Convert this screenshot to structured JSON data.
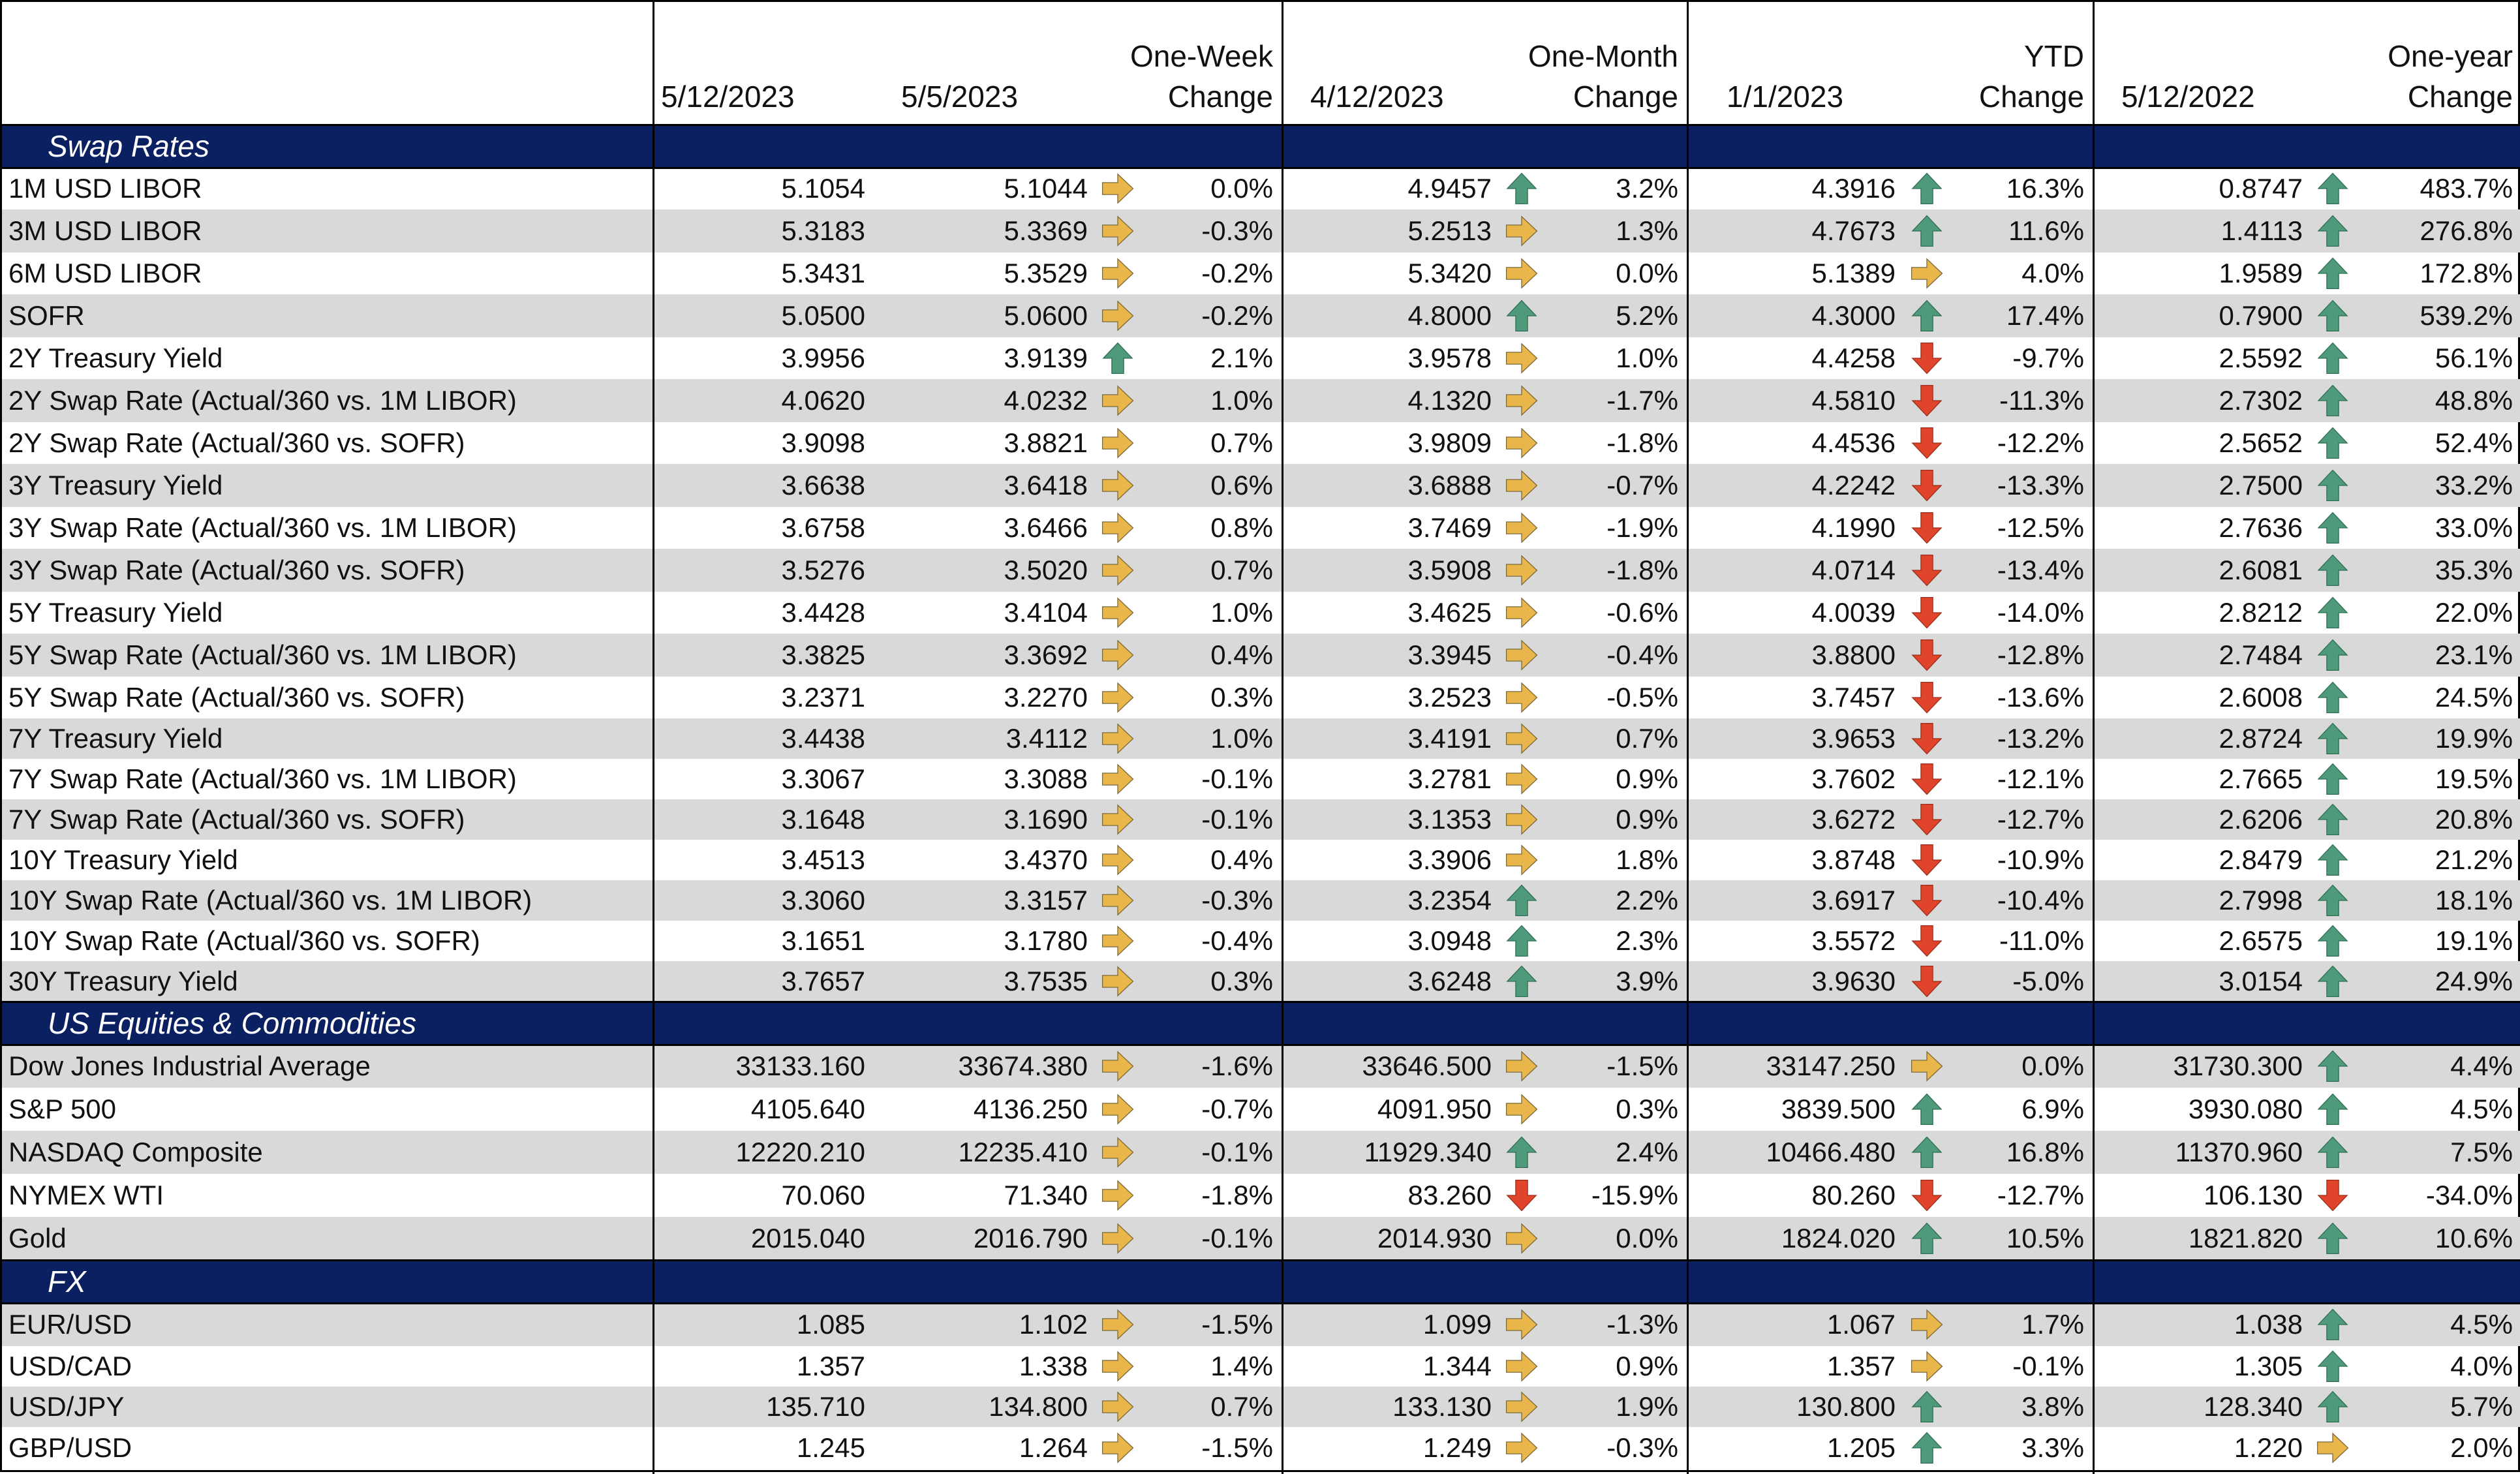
{
  "headers": [
    {
      "line1": "",
      "line2": "5/12/2023"
    },
    {
      "line1": "",
      "line2": "5/5/2023"
    },
    {
      "line1": "One-Week",
      "line2": "Change"
    },
    {
      "line1": "",
      "line2": "4/12/2023"
    },
    {
      "line1": "One-Month",
      "line2": "Change"
    },
    {
      "line1": "",
      "line2": "1/1/2023"
    },
    {
      "line1": "YTD",
      "line2": "Change"
    },
    {
      "line1": "",
      "line2": "5/12/2022"
    },
    {
      "line1": "One-year",
      "line2": "Change"
    }
  ],
  "colors": {
    "section_bg": "#0b2060",
    "shade": "#d9d9d9",
    "arrow_up": "#4e9a7a",
    "arrow_down": "#e0442a",
    "arrow_flat": "#e9b64c"
  },
  "sections": [
    {
      "title": "Swap Rates",
      "rows": [
        {
          "name": "1M USD LIBOR",
          "current": "5.1054",
          "week": "5.1044",
          "week_dir": "flat",
          "week_chg": "0.0%",
          "month": "4.9457",
          "month_dir": "up",
          "month_chg": "3.2%",
          "ytd": "4.3916",
          "ytd_dir": "up",
          "ytd_chg": "16.3%",
          "year": "0.8747",
          "year_dir": "up",
          "year_chg": "483.7%"
        },
        {
          "name": "3M USD LIBOR",
          "current": "5.3183",
          "week": "5.3369",
          "week_dir": "flat",
          "week_chg": "-0.3%",
          "month": "5.2513",
          "month_dir": "flat",
          "month_chg": "1.3%",
          "ytd": "4.7673",
          "ytd_dir": "up",
          "ytd_chg": "11.6%",
          "year": "1.4113",
          "year_dir": "up",
          "year_chg": "276.8%"
        },
        {
          "name": "6M USD LIBOR",
          "current": "5.3431",
          "week": "5.3529",
          "week_dir": "flat",
          "week_chg": "-0.2%",
          "month": "5.3420",
          "month_dir": "flat",
          "month_chg": "0.0%",
          "ytd": "5.1389",
          "ytd_dir": "flat",
          "ytd_chg": "4.0%",
          "year": "1.9589",
          "year_dir": "up",
          "year_chg": "172.8%"
        },
        {
          "name": "SOFR",
          "current": "5.0500",
          "week": "5.0600",
          "week_dir": "flat",
          "week_chg": "-0.2%",
          "month": "4.8000",
          "month_dir": "up",
          "month_chg": "5.2%",
          "ytd": "4.3000",
          "ytd_dir": "up",
          "ytd_chg": "17.4%",
          "year": "0.7900",
          "year_dir": "up",
          "year_chg": "539.2%"
        },
        {
          "name": "2Y Treasury Yield",
          "current": "3.9956",
          "week": "3.9139",
          "week_dir": "up",
          "week_chg": "2.1%",
          "month": "3.9578",
          "month_dir": "flat",
          "month_chg": "1.0%",
          "ytd": "4.4258",
          "ytd_dir": "down",
          "ytd_chg": "-9.7%",
          "year": "2.5592",
          "year_dir": "up",
          "year_chg": "56.1%"
        },
        {
          "name": "2Y Swap Rate (Actual/360 vs. 1M LIBOR)",
          "current": "4.0620",
          "week": "4.0232",
          "week_dir": "flat",
          "week_chg": "1.0%",
          "month": "4.1320",
          "month_dir": "flat",
          "month_chg": "-1.7%",
          "ytd": "4.5810",
          "ytd_dir": "down",
          "ytd_chg": "-11.3%",
          "year": "2.7302",
          "year_dir": "up",
          "year_chg": "48.8%"
        },
        {
          "name": "2Y Swap Rate (Actual/360 vs. SOFR)",
          "current": "3.9098",
          "week": "3.8821",
          "week_dir": "flat",
          "week_chg": "0.7%",
          "month": "3.9809",
          "month_dir": "flat",
          "month_chg": "-1.8%",
          "ytd": "4.4536",
          "ytd_dir": "down",
          "ytd_chg": "-12.2%",
          "year": "2.5652",
          "year_dir": "up",
          "year_chg": "52.4%"
        },
        {
          "name": "3Y Treasury Yield",
          "current": "3.6638",
          "week": "3.6418",
          "week_dir": "flat",
          "week_chg": "0.6%",
          "month": "3.6888",
          "month_dir": "flat",
          "month_chg": "-0.7%",
          "ytd": "4.2242",
          "ytd_dir": "down",
          "ytd_chg": "-13.3%",
          "year": "2.7500",
          "year_dir": "up",
          "year_chg": "33.2%"
        },
        {
          "name": "3Y Swap Rate (Actual/360 vs. 1M LIBOR)",
          "current": "3.6758",
          "week": "3.6466",
          "week_dir": "flat",
          "week_chg": "0.8%",
          "month": "3.7469",
          "month_dir": "flat",
          "month_chg": "-1.9%",
          "ytd": "4.1990",
          "ytd_dir": "down",
          "ytd_chg": "-12.5%",
          "year": "2.7636",
          "year_dir": "up",
          "year_chg": "33.0%"
        },
        {
          "name": "3Y Swap Rate (Actual/360 vs. SOFR)",
          "current": "3.5276",
          "week": "3.5020",
          "week_dir": "flat",
          "week_chg": "0.7%",
          "month": "3.5908",
          "month_dir": "flat",
          "month_chg": "-1.8%",
          "ytd": "4.0714",
          "ytd_dir": "down",
          "ytd_chg": "-13.4%",
          "year": "2.6081",
          "year_dir": "up",
          "year_chg": "35.3%"
        },
        {
          "name": "5Y Treasury Yield",
          "current": "3.4428",
          "week": "3.4104",
          "week_dir": "flat",
          "week_chg": "1.0%",
          "month": "3.4625",
          "month_dir": "flat",
          "month_chg": "-0.6%",
          "ytd": "4.0039",
          "ytd_dir": "down",
          "ytd_chg": "-14.0%",
          "year": "2.8212",
          "year_dir": "up",
          "year_chg": "22.0%"
        },
        {
          "name": "5Y Swap Rate (Actual/360 vs. 1M LIBOR)",
          "current": "3.3825",
          "week": "3.3692",
          "week_dir": "flat",
          "week_chg": "0.4%",
          "month": "3.3945",
          "month_dir": "flat",
          "month_chg": "-0.4%",
          "ytd": "3.8800",
          "ytd_dir": "down",
          "ytd_chg": "-12.8%",
          "year": "2.7484",
          "year_dir": "up",
          "year_chg": "23.1%"
        },
        {
          "name": "5Y Swap Rate (Actual/360 vs. SOFR)",
          "current": "3.2371",
          "week": "3.2270",
          "week_dir": "flat",
          "week_chg": "0.3%",
          "month": "3.2523",
          "month_dir": "flat",
          "month_chg": "-0.5%",
          "ytd": "3.7457",
          "ytd_dir": "down",
          "ytd_chg": "-13.6%",
          "year": "2.6008",
          "year_dir": "up",
          "year_chg": "24.5%"
        },
        {
          "name": "7Y Treasury Yield",
          "current": "3.4438",
          "week": "3.4112",
          "week_dir": "flat",
          "week_chg": "1.0%",
          "month": "3.4191",
          "month_dir": "flat",
          "month_chg": "0.7%",
          "ytd": "3.9653",
          "ytd_dir": "down",
          "ytd_chg": "-13.2%",
          "year": "2.8724",
          "year_dir": "up",
          "year_chg": "19.9%"
        },
        {
          "name": "7Y Swap Rate (Actual/360 vs. 1M LIBOR)",
          "current": "3.3067",
          "week": "3.3088",
          "week_dir": "flat",
          "week_chg": "-0.1%",
          "month": "3.2781",
          "month_dir": "flat",
          "month_chg": "0.9%",
          "ytd": "3.7602",
          "ytd_dir": "down",
          "ytd_chg": "-12.1%",
          "year": "2.7665",
          "year_dir": "up",
          "year_chg": "19.5%"
        },
        {
          "name": "7Y Swap Rate (Actual/360 vs. SOFR)",
          "current": "3.1648",
          "week": "3.1690",
          "week_dir": "flat",
          "week_chg": "-0.1%",
          "month": "3.1353",
          "month_dir": "flat",
          "month_chg": "0.9%",
          "ytd": "3.6272",
          "ytd_dir": "down",
          "ytd_chg": "-12.7%",
          "year": "2.6206",
          "year_dir": "up",
          "year_chg": "20.8%"
        },
        {
          "name": "10Y Treasury Yield",
          "current": "3.4513",
          "week": "3.4370",
          "week_dir": "flat",
          "week_chg": "0.4%",
          "month": "3.3906",
          "month_dir": "flat",
          "month_chg": "1.8%",
          "ytd": "3.8748",
          "ytd_dir": "down",
          "ytd_chg": "-10.9%",
          "year": "2.8479",
          "year_dir": "up",
          "year_chg": "21.2%"
        },
        {
          "name": "10Y Swap Rate (Actual/360 vs. 1M LIBOR)",
          "current": "3.3060",
          "week": "3.3157",
          "week_dir": "flat",
          "week_chg": "-0.3%",
          "month": "3.2354",
          "month_dir": "up",
          "month_chg": "2.2%",
          "ytd": "3.6917",
          "ytd_dir": "down",
          "ytd_chg": "-10.4%",
          "year": "2.7998",
          "year_dir": "up",
          "year_chg": "18.1%"
        },
        {
          "name": "10Y Swap Rate (Actual/360 vs. SOFR)",
          "current": "3.1651",
          "week": "3.1780",
          "week_dir": "flat",
          "week_chg": "-0.4%",
          "month": "3.0948",
          "month_dir": "up",
          "month_chg": "2.3%",
          "ytd": "3.5572",
          "ytd_dir": "down",
          "ytd_chg": "-11.0%",
          "year": "2.6575",
          "year_dir": "up",
          "year_chg": "19.1%"
        },
        {
          "name": "30Y Treasury Yield",
          "current": "3.7657",
          "week": "3.7535",
          "week_dir": "flat",
          "week_chg": "0.3%",
          "month": "3.6248",
          "month_dir": "up",
          "month_chg": "3.9%",
          "ytd": "3.9630",
          "ytd_dir": "down",
          "ytd_chg": "-5.0%",
          "year": "3.0154",
          "year_dir": "up",
          "year_chg": "24.9%"
        }
      ]
    },
    {
      "title": "US Equities & Commodities",
      "rows": [
        {
          "name": "Dow Jones Industrial Average",
          "current": "33133.160",
          "week": "33674.380",
          "week_dir": "flat",
          "week_chg": "-1.6%",
          "month": "33646.500",
          "month_dir": "flat",
          "month_chg": "-1.5%",
          "ytd": "33147.250",
          "ytd_dir": "flat",
          "ytd_chg": "0.0%",
          "year": "31730.300",
          "year_dir": "up",
          "year_chg": "4.4%"
        },
        {
          "name": "S&P 500",
          "current": "4105.640",
          "week": "4136.250",
          "week_dir": "flat",
          "week_chg": "-0.7%",
          "month": "4091.950",
          "month_dir": "flat",
          "month_chg": "0.3%",
          "ytd": "3839.500",
          "ytd_dir": "up",
          "ytd_chg": "6.9%",
          "year": "3930.080",
          "year_dir": "up",
          "year_chg": "4.5%"
        },
        {
          "name": "NASDAQ Composite",
          "current": "12220.210",
          "week": "12235.410",
          "week_dir": "flat",
          "week_chg": "-0.1%",
          "month": "11929.340",
          "month_dir": "up",
          "month_chg": "2.4%",
          "ytd": "10466.480",
          "ytd_dir": "up",
          "ytd_chg": "16.8%",
          "year": "11370.960",
          "year_dir": "up",
          "year_chg": "7.5%"
        },
        {
          "name": "NYMEX WTI",
          "current": "70.060",
          "week": "71.340",
          "week_dir": "flat",
          "week_chg": "-1.8%",
          "month": "83.260",
          "month_dir": "down",
          "month_chg": "-15.9%",
          "ytd": "80.260",
          "ytd_dir": "down",
          "ytd_chg": "-12.7%",
          "year": "106.130",
          "year_dir": "down",
          "year_chg": "-34.0%"
        },
        {
          "name": "Gold",
          "current": "2015.040",
          "week": "2016.790",
          "week_dir": "flat",
          "week_chg": "-0.1%",
          "month": "2014.930",
          "month_dir": "flat",
          "month_chg": "0.0%",
          "ytd": "1824.020",
          "ytd_dir": "up",
          "ytd_chg": "10.5%",
          "year": "1821.820",
          "year_dir": "up",
          "year_chg": "10.6%"
        }
      ]
    },
    {
      "title": "FX",
      "rows": [
        {
          "name": "EUR/USD",
          "current": "1.085",
          "week": "1.102",
          "week_dir": "flat",
          "week_chg": "-1.5%",
          "month": "1.099",
          "month_dir": "flat",
          "month_chg": "-1.3%",
          "ytd": "1.067",
          "ytd_dir": "flat",
          "ytd_chg": "1.7%",
          "year": "1.038",
          "year_dir": "up",
          "year_chg": "4.5%"
        },
        {
          "name": "USD/CAD",
          "current": "1.357",
          "week": "1.338",
          "week_dir": "flat",
          "week_chg": "1.4%",
          "month": "1.344",
          "month_dir": "flat",
          "month_chg": "0.9%",
          "ytd": "1.357",
          "ytd_dir": "flat",
          "ytd_chg": "-0.1%",
          "year": "1.305",
          "year_dir": "up",
          "year_chg": "4.0%"
        },
        {
          "name": "USD/JPY",
          "current": "135.710",
          "week": "134.800",
          "week_dir": "flat",
          "week_chg": "0.7%",
          "month": "133.130",
          "month_dir": "flat",
          "month_chg": "1.9%",
          "ytd": "130.800",
          "ytd_dir": "up",
          "ytd_chg": "3.8%",
          "year": "128.340",
          "year_dir": "up",
          "year_chg": "5.7%"
        },
        {
          "name": "GBP/USD",
          "current": "1.245",
          "week": "1.264",
          "week_dir": "flat",
          "week_chg": "-1.5%",
          "month": "1.249",
          "month_dir": "flat",
          "month_chg": "-0.3%",
          "ytd": "1.205",
          "ytd_dir": "up",
          "ytd_chg": "3.3%",
          "year": "1.220",
          "year_dir": "flat",
          "year_chg": "2.0%"
        }
      ]
    }
  ]
}
